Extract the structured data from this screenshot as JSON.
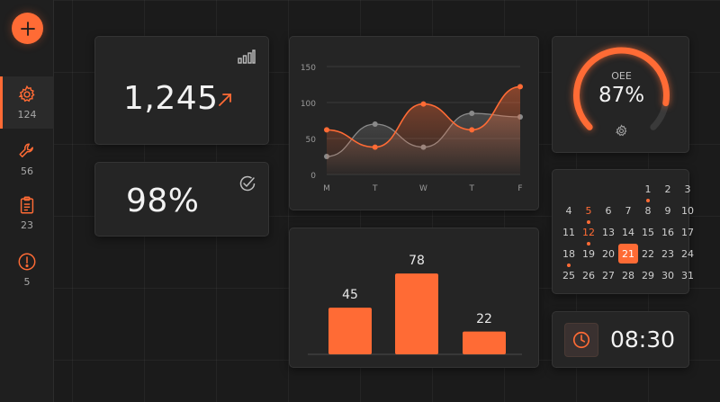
{
  "colors": {
    "accent": "#ff6b35",
    "card_bg": "#252525",
    "page_bg": "#1b1b1b",
    "muted_line": "#8a8a8a"
  },
  "sidebar": {
    "add_icon": "plus-icon",
    "items": [
      {
        "icon": "gear-icon",
        "count": "124",
        "active": true
      },
      {
        "icon": "wrench-icon",
        "count": "56",
        "active": false
      },
      {
        "icon": "clipboard-icon",
        "count": "23",
        "active": false
      },
      {
        "icon": "alert-icon",
        "count": "5",
        "active": false
      }
    ]
  },
  "kpi_total": {
    "value": "1,245",
    "trend_icon": "arrow-up-right-icon",
    "corner_icon": "signal-bars-icon"
  },
  "kpi_rate": {
    "value": "98%",
    "corner_icon": "check-circle-icon"
  },
  "oee": {
    "label": "OEE",
    "value": "87%",
    "progress": 0.87,
    "icon": "gear-icon"
  },
  "line_chart": {
    "chart_data": {
      "type": "area",
      "categories": [
        "M",
        "T",
        "W",
        "T",
        "F"
      ],
      "yticks": [
        "0",
        "50",
        "100",
        "150"
      ],
      "ylim": [
        0,
        150
      ],
      "grid": true,
      "series": [
        {
          "values": [
            62,
            38,
            98,
            62,
            122
          ],
          "color": "#ff6b35"
        },
        {
          "values": [
            25,
            70,
            38,
            85,
            80
          ],
          "color": "#8a8a8a"
        }
      ]
    }
  },
  "bar_chart": {
    "chart_data": {
      "type": "bar",
      "values": [
        45,
        78,
        22
      ],
      "labels": [
        "45",
        "78",
        "22"
      ],
      "ylim": [
        0,
        85
      ]
    }
  },
  "calendar": {
    "selected": "21",
    "weeks": [
      [
        "",
        "",
        "",
        "",
        "1",
        "2",
        "3"
      ],
      [
        "4",
        "5",
        "6",
        "7",
        "8",
        "9",
        "10"
      ],
      [
        "11",
        "12",
        "13",
        "14",
        "15",
        "16",
        "17"
      ],
      [
        "18",
        "19",
        "20",
        "21",
        "22",
        "23",
        "24"
      ],
      [
        "25",
        "26",
        "27",
        "28",
        "29",
        "30",
        "31"
      ]
    ],
    "red_days": [
      "5",
      "12"
    ],
    "event_days": [
      "1",
      "5",
      "12",
      "18"
    ]
  },
  "clock": {
    "time": "08:30",
    "icon": "clock-icon"
  }
}
